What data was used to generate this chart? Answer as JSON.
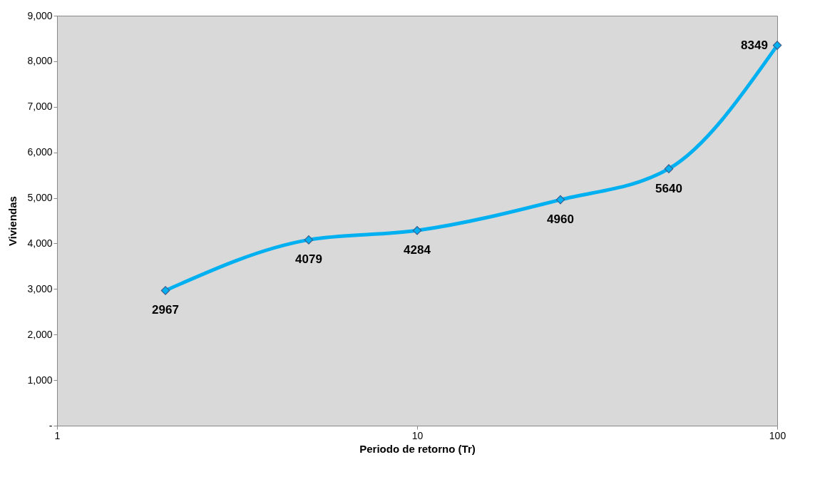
{
  "chart_data": {
    "type": "line",
    "xlabel": "Periodo de retorno (Tr)",
    "ylabel": "Viviendas",
    "x": [
      2,
      5,
      10,
      25,
      50,
      100
    ],
    "series": [
      {
        "color": "#00b0f0",
        "values": [
          2967,
          4079,
          4284,
          4960,
          5640,
          8349
        ]
      }
    ],
    "log": "x",
    "xlim": [
      1,
      100
    ],
    "xticks": [
      1,
      10,
      100
    ],
    "ylim": [
      0,
      9000
    ],
    "yticks": [
      {
        "value": 0,
        "label": "-"
      },
      {
        "value": 1000,
        "label": "1,000"
      },
      {
        "value": 2000,
        "label": "2,000"
      },
      {
        "value": 3000,
        "label": "3,000"
      },
      {
        "value": 4000,
        "label": "4,000"
      },
      {
        "value": 5000,
        "label": "5,000"
      },
      {
        "value": 6000,
        "label": "6,000"
      },
      {
        "value": 7000,
        "label": "7,000"
      },
      {
        "value": 8000,
        "label": "8,000"
      },
      {
        "value": 9000,
        "label": "9,000"
      }
    ],
    "grid": false,
    "marker": "diamond",
    "data_labels": true
  }
}
